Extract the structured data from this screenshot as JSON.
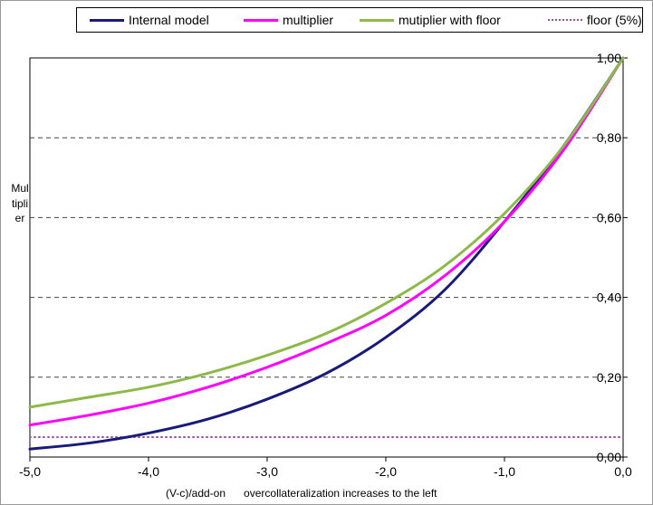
{
  "chart_data": {
    "type": "line",
    "title": "",
    "xlabel": "(V-c)/add-on",
    "xlabel_note": "overcollateralization increases to the left",
    "ylabel": "Multiplier",
    "xlim": [
      -5.0,
      0.0
    ],
    "ylim": [
      0.0,
      1.0
    ],
    "x_ticks": [
      "-5,0",
      "-4,0",
      "-3,0",
      "-2,0",
      "-1,0",
      "0,0"
    ],
    "y_ticks": [
      "0,00",
      "0,20",
      "0,40",
      "0,60",
      "0,80",
      "1,00"
    ],
    "grid": "horizontal dashed",
    "legend_position": "top",
    "x": [
      -5.0,
      -4.5,
      -4.0,
      -3.5,
      -3.0,
      -2.5,
      -2.0,
      -1.5,
      -1.0,
      -0.5,
      0.0
    ],
    "series": [
      {
        "name": "Internal model",
        "color": "#1a1a7a",
        "style": "solid",
        "values": [
          0.02,
          0.035,
          0.06,
          0.095,
          0.145,
          0.21,
          0.3,
          0.42,
          0.59,
          0.78,
          1.0
        ]
      },
      {
        "name": "multiplier",
        "color": "#ff00ff",
        "style": "solid",
        "values": [
          0.08,
          0.105,
          0.135,
          0.175,
          0.225,
          0.285,
          0.355,
          0.455,
          0.59,
          0.77,
          1.0
        ]
      },
      {
        "name": "mutiplier with floor",
        "color": "#8db84a",
        "style": "solid",
        "values": [
          0.125,
          0.15,
          0.175,
          0.21,
          0.255,
          0.31,
          0.385,
          0.48,
          0.61,
          0.78,
          1.0
        ]
      },
      {
        "name": "floor (5%)",
        "color": "#9c4fa8",
        "style": "dotted",
        "values": [
          0.05,
          0.05,
          0.05,
          0.05,
          0.05,
          0.05,
          0.05,
          0.05,
          0.05,
          0.05,
          0.05
        ]
      }
    ]
  }
}
